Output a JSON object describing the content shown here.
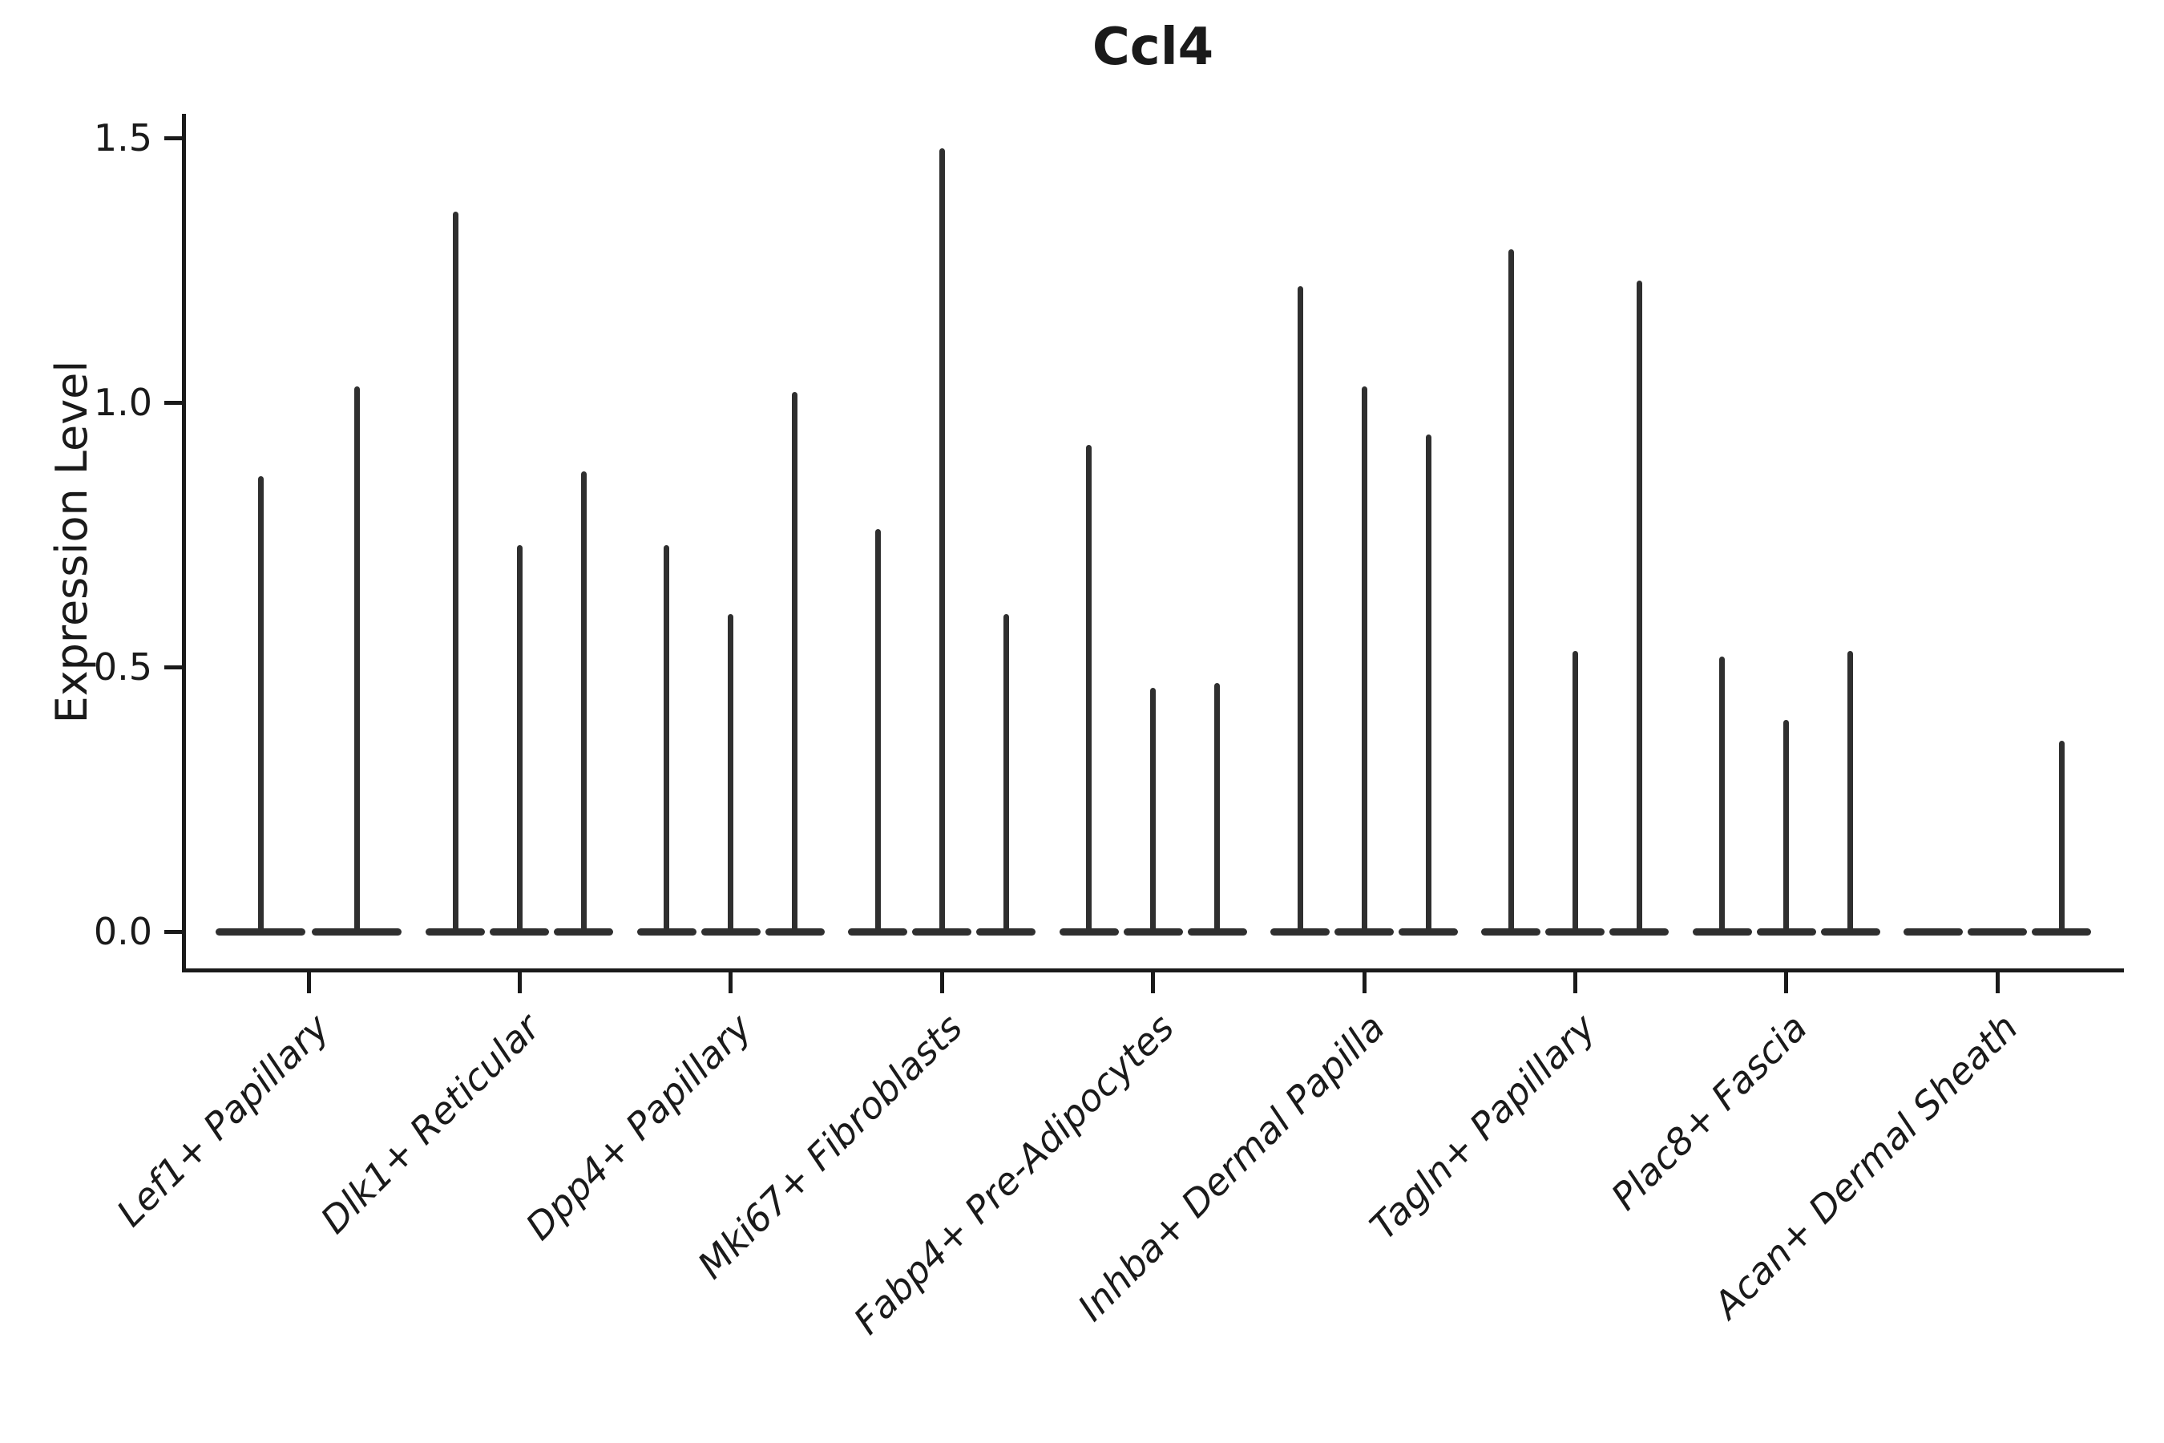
{
  "chart_data": {
    "type": "violin",
    "title": "Ccl4",
    "ylabel": "Expression Level",
    "xlabel": "",
    "grid": false,
    "legend_position": "none",
    "ink_color": "#1a1a1a",
    "violin_color": "#2f2f2f",
    "ylim": [
      -0.07,
      1.55
    ],
    "ytick_labels": [
      "0.0",
      "0.5",
      "1.0",
      "1.5"
    ],
    "ytick_values": [
      0.0,
      0.5,
      1.0,
      1.5
    ],
    "groups": [
      {
        "label": "Lef1+ Papillary",
        "violin_max": [
          0.86,
          1.03
        ]
      },
      {
        "label": "Dlk1+ Reticular",
        "violin_max": [
          1.36,
          0.73,
          0.87
        ]
      },
      {
        "label": "Dpp4+ Papillary",
        "violin_max": [
          0.73,
          0.6,
          1.02
        ]
      },
      {
        "label": "Mki67+ Fibroblasts",
        "violin_max": [
          0.76,
          1.48,
          0.6
        ]
      },
      {
        "label": "Fabp4+ Pre-Adipocytes",
        "violin_max": [
          0.92,
          0.46,
          0.47
        ]
      },
      {
        "label": "Inhba+ Dermal Papilla",
        "violin_max": [
          1.22,
          1.03,
          0.94
        ]
      },
      {
        "label": "Tagln+ Papillary",
        "violin_max": [
          1.29,
          0.53,
          1.23
        ]
      },
      {
        "label": "Plac8+ Fascia",
        "violin_max": [
          0.52,
          0.4,
          0.53
        ]
      },
      {
        "label": "Acan+ Dermal Sheath",
        "violin_max": [
          0.02,
          0.02,
          0.36
        ]
      }
    ]
  }
}
